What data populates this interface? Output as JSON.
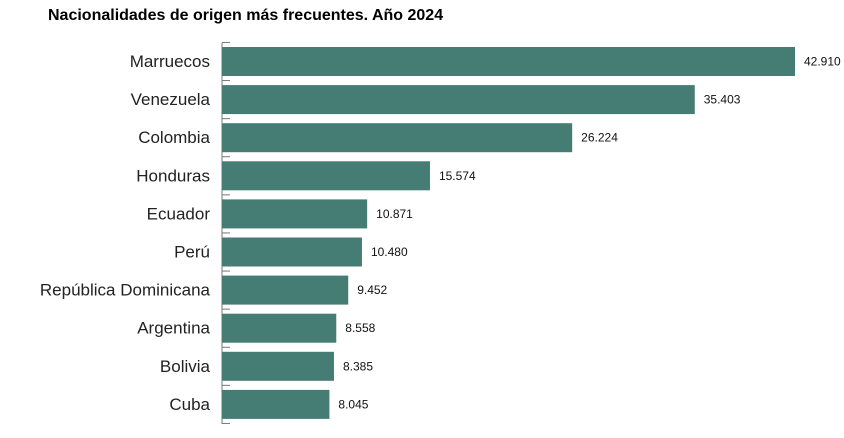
{
  "chart_data": {
    "type": "bar",
    "orientation": "horizontal",
    "title": "Nacionalidades de origen más frecuentes. Año 2024",
    "xlabel": "",
    "ylabel": "",
    "categories": [
      "Marruecos",
      "Venezuela",
      "Colombia",
      "Honduras",
      "Ecuador",
      "Perú",
      "República Dominicana",
      "Argentina",
      "Bolivia",
      "Cuba"
    ],
    "values": [
      42910,
      35403,
      26224,
      15574,
      10871,
      10480,
      9452,
      8558,
      8385,
      8045
    ],
    "value_labels": [
      "42.910",
      "35.403",
      "26.224",
      "15.574",
      "10.871",
      "10.480",
      "9.452",
      "8.558",
      "8.385",
      "8.045"
    ],
    "xlim": [
      0,
      42910
    ],
    "grid": false,
    "legend": "none",
    "bar_color": "#457d74"
  }
}
